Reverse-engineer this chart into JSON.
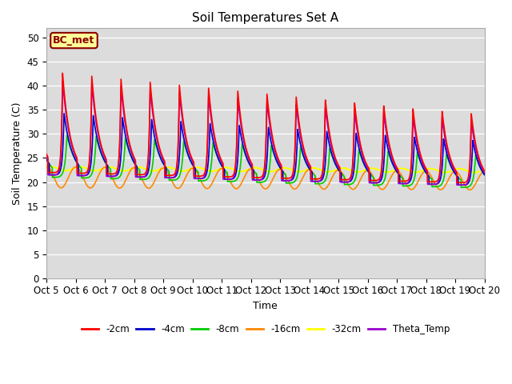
{
  "title": "Soil Temperatures Set A",
  "xlabel": "Time",
  "ylabel": "Soil Temperature (C)",
  "ylim": [
    0,
    52
  ],
  "xlim": [
    0,
    15
  ],
  "background_color": "#dcdcdc",
  "annotation_text": "BC_met",
  "annotation_bg": "#ffff99",
  "annotation_border": "#8B0000",
  "series": {
    "-2cm": {
      "color": "#ff0000",
      "lw": 1.2
    },
    "-4cm": {
      "color": "#0000cc",
      "lw": 1.2
    },
    "-8cm": {
      "color": "#00cc00",
      "lw": 1.2
    },
    "-16cm": {
      "color": "#ff8800",
      "lw": 1.2
    },
    "-32cm": {
      "color": "#ffff00",
      "lw": 1.5
    },
    "Theta_Temp": {
      "color": "#9900cc",
      "lw": 1.2
    }
  },
  "tick_labels": [
    "Oct 5",
    "Oct 6",
    "Oct 7",
    "Oct 8",
    "Oct 9",
    "Oct 10",
    "Oct 11",
    "Oct 12",
    "Oct 13",
    "Oct 14",
    "Oct 15",
    "Oct 16",
    "Oct 17",
    "Oct 18",
    "Oct 19",
    "Oct 20"
  ],
  "yticks": [
    0,
    5,
    10,
    15,
    20,
    25,
    30,
    35,
    40,
    45,
    50
  ]
}
